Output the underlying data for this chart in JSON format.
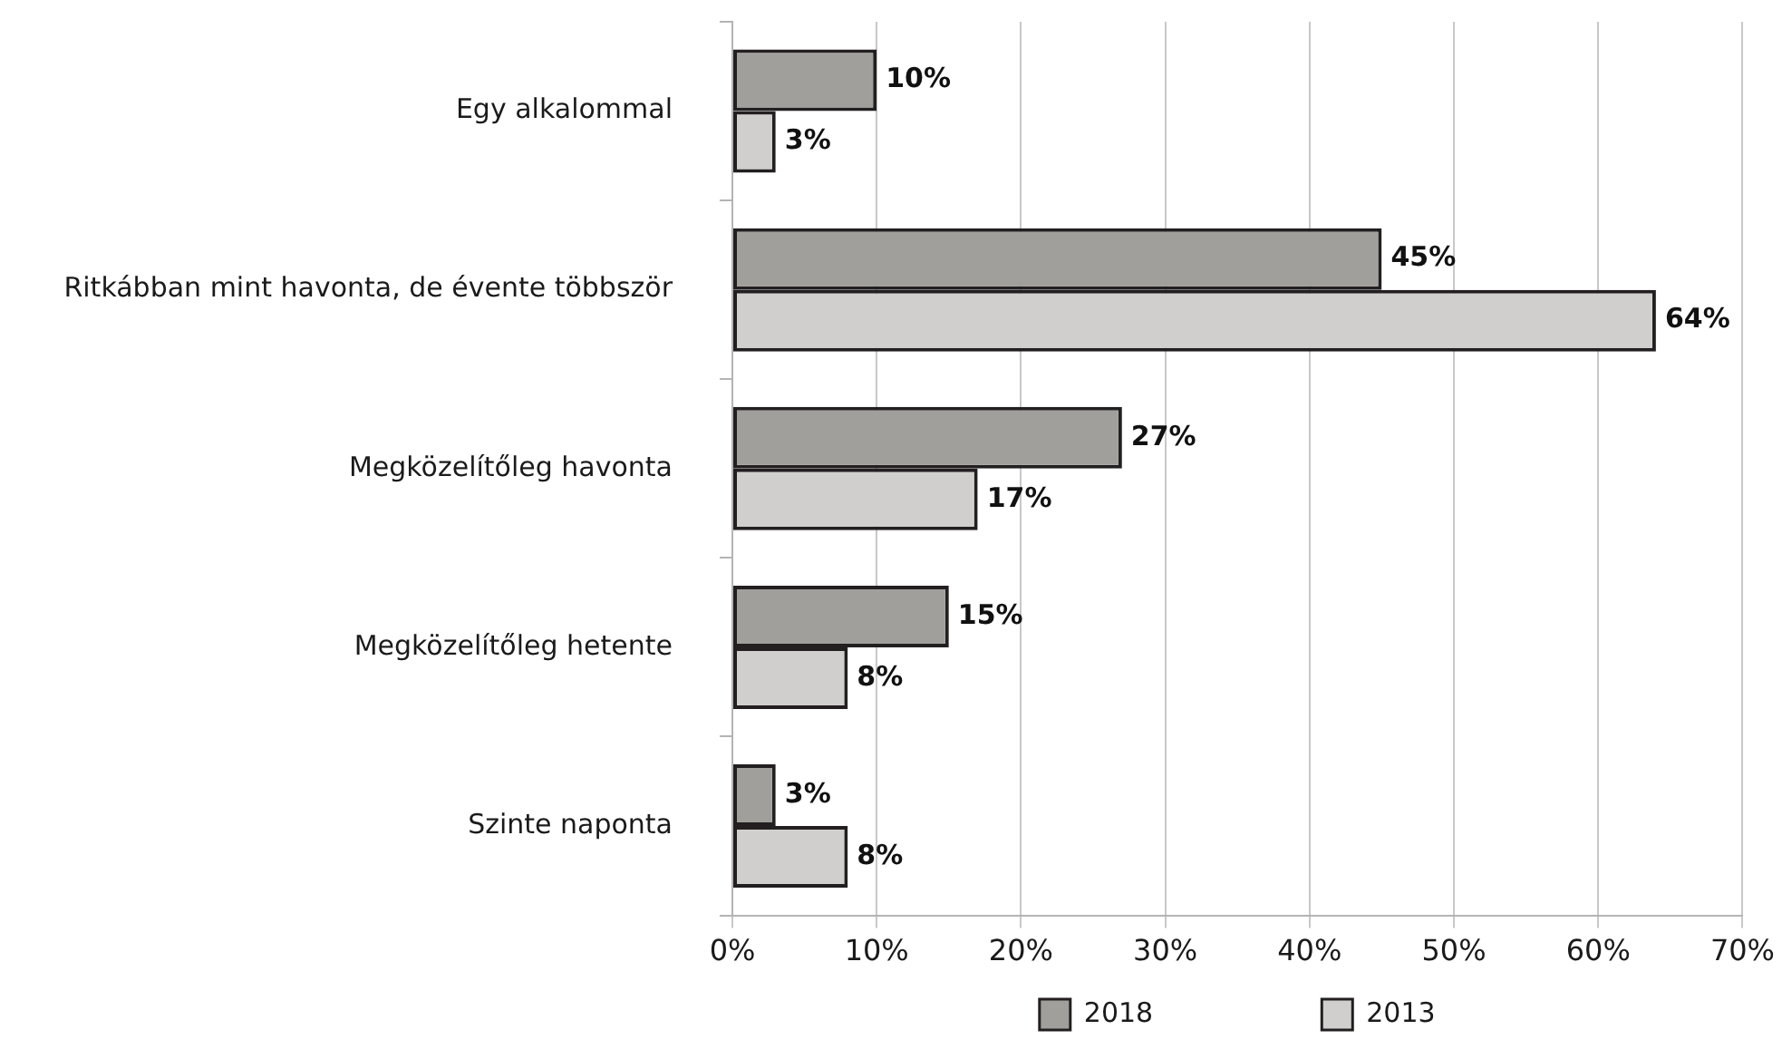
{
  "chart_data": {
    "type": "bar",
    "orientation": "horizontal",
    "categories": [
      "Egy alkalommal",
      "Ritkábban mint havonta, de évente többször",
      "Megközelítőleg havonta",
      "Megközelítőleg hetente",
      "Szinte naponta"
    ],
    "series": [
      {
        "name": "2018",
        "color": "#a09f9b",
        "values": [
          10,
          45,
          27,
          15,
          3
        ],
        "value_labels": [
          "10%",
          "45%",
          "27%",
          "15%",
          "3%"
        ]
      },
      {
        "name": "2013",
        "color": "#d0cfcd",
        "values": [
          3,
          64,
          17,
          8,
          8
        ],
        "value_labels": [
          "3%",
          "64%",
          "17%",
          "8%",
          "8%"
        ]
      }
    ],
    "xlim": [
      0,
      70
    ],
    "xticks": [
      {
        "value": 0,
        "label": "0%"
      },
      {
        "value": 10,
        "label": "10%"
      },
      {
        "value": 20,
        "label": "20%"
      },
      {
        "value": 30,
        "label": "30%"
      },
      {
        "value": 40,
        "label": "40%"
      },
      {
        "value": 50,
        "label": "50%"
      },
      {
        "value": 60,
        "label": "60%"
      },
      {
        "value": 70,
        "label": "70%"
      }
    ],
    "grid": "x",
    "legend": "bottom"
  }
}
